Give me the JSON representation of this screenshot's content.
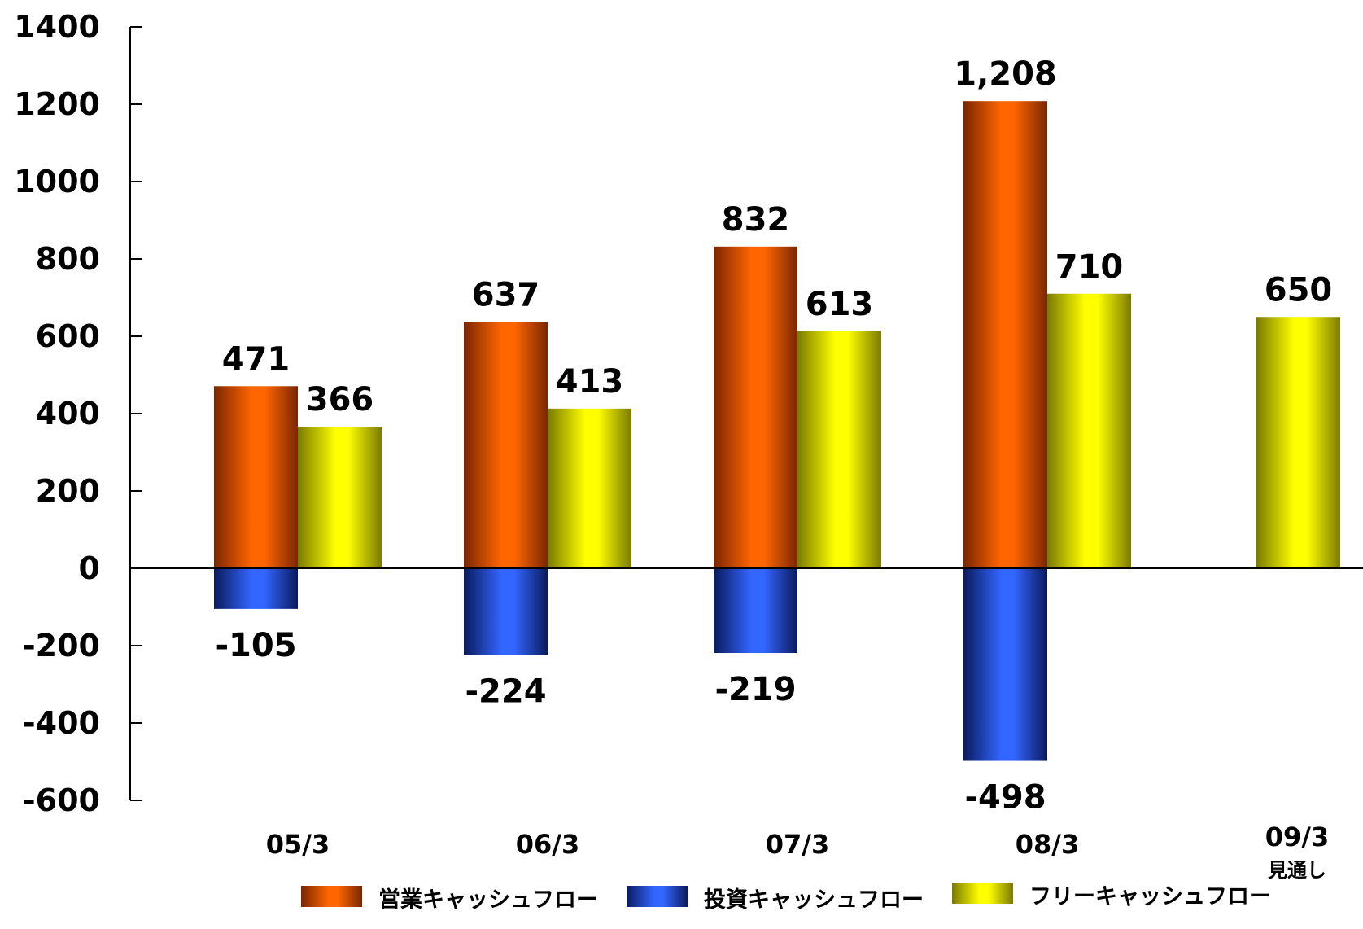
{
  "chart_data": {
    "type": "bar",
    "categories": [
      "05/3",
      "06/3",
      "07/3",
      "08/3",
      "09/3"
    ],
    "category_notes": [
      "",
      "",
      "",
      "",
      "見通し"
    ],
    "series": [
      {
        "name": "営業キャッシュフロー",
        "values": [
          471,
          637,
          832,
          1208,
          null
        ],
        "labels": [
          "471",
          "637",
          "832",
          "1,208",
          ""
        ],
        "color": "#ff6600",
        "dark": "#7a2600"
      },
      {
        "name": "投資キャッシュフロー",
        "values": [
          -105,
          -224,
          -219,
          -498,
          null
        ],
        "labels": [
          "-105",
          "-224",
          "-219",
          "-498",
          ""
        ],
        "color": "#3366ff",
        "dark": "#0a1a5c"
      },
      {
        "name": "フリーキャッシュフロー",
        "values": [
          366,
          413,
          613,
          710,
          650
        ],
        "labels": [
          "366",
          "413",
          "613",
          "710",
          "650"
        ],
        "color": "#ffff00",
        "dark": "#7a7a00"
      }
    ],
    "ylim": [
      -600,
      1400
    ],
    "yticks": [
      1400,
      1200,
      1000,
      800,
      600,
      400,
      200,
      0,
      -200,
      -400,
      -600
    ],
    "grid": false,
    "legend": "bottom"
  }
}
